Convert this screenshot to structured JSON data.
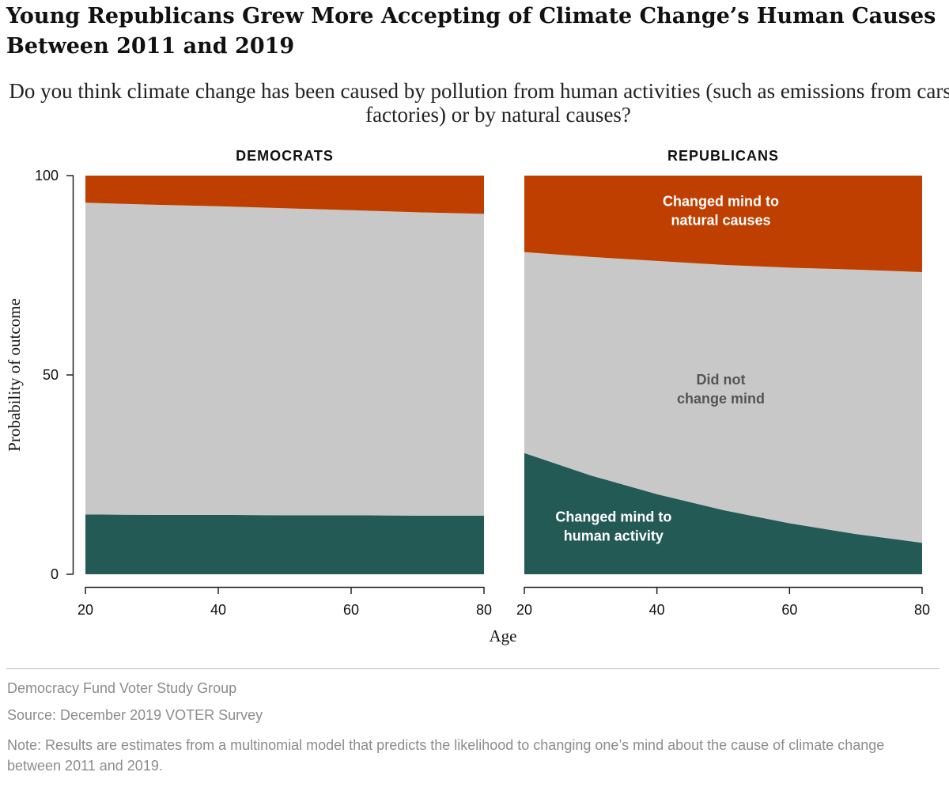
{
  "title": "Young Republicans Grew More Accepting of Climate Change’s Human Causes Between 2011 and 2019",
  "subtitle": "Do you think climate change has been caused by pollution from human activities (such as emissions from cars and factories) or by natural causes?",
  "footer": {
    "org": "Democracy Fund Voter Study Group",
    "source": "Source: December 2019 VOTER Survey",
    "note": "Note: Results are estimates from a multinomial model that predicts the likelihood to changing one’s mind about the cause of climate change between 2011 and 2019."
  },
  "chart_data": {
    "type": "area",
    "stacked": true,
    "xlabel": "Age",
    "ylabel": "Probability of outcome",
    "xlim": [
      20,
      80
    ],
    "ylim": [
      0,
      100
    ],
    "x_ticks": [
      "20",
      "40",
      "60",
      "80"
    ],
    "y_ticks": [
      "0",
      "50",
      "100"
    ],
    "grid": false,
    "colors": {
      "human": "#245a56",
      "none": "#c8c8c8",
      "natural": "#bf3f00"
    },
    "panels": [
      {
        "title": "DEMOCRATS",
        "x": [
          20,
          30,
          40,
          50,
          60,
          70,
          80
        ],
        "series": [
          {
            "key": "human",
            "label": "",
            "values": [
              15.0,
              14.9,
              14.9,
              14.8,
              14.8,
              14.7,
              14.7
            ]
          },
          {
            "key": "none",
            "label": "",
            "values": [
              78.2,
              77.8,
              77.4,
              77.0,
              76.5,
              76.1,
              75.7
            ]
          },
          {
            "key": "natural",
            "label": "",
            "values": [
              6.8,
              7.3,
              7.7,
              8.2,
              8.7,
              9.2,
              9.6
            ]
          }
        ]
      },
      {
        "title": "REPUBLICANS",
        "x": [
          20,
          30,
          40,
          50,
          60,
          70,
          80
        ],
        "series": [
          {
            "key": "human",
            "label": "Changed mind to human activity",
            "values": [
              30.4,
              24.8,
              20.1,
              16.1,
              12.8,
              10.1,
              7.9
            ]
          },
          {
            "key": "none",
            "label": "Did not change mind",
            "values": [
              50.4,
              54.8,
              58.5,
              61.5,
              64.1,
              66.3,
              67.9
            ]
          },
          {
            "key": "natural",
            "label": "Changed mind to natural causes",
            "values": [
              19.2,
              20.4,
              21.4,
              22.4,
              23.1,
              23.6,
              24.2
            ]
          }
        ]
      }
    ]
  }
}
